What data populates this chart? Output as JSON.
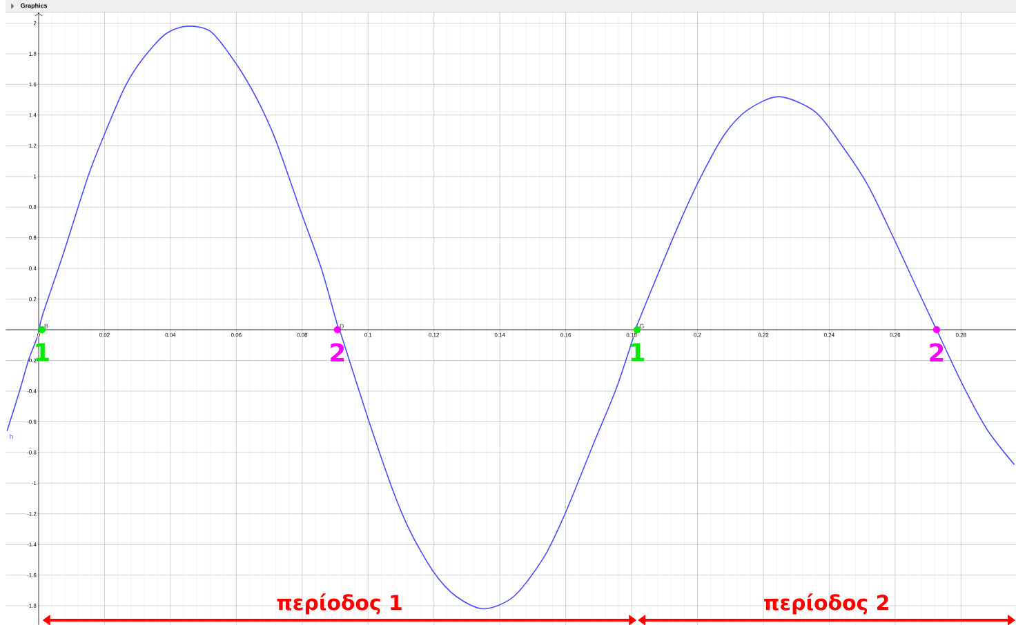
{
  "chart_data": {
    "type": "line",
    "title": "Graphics",
    "xlim": [
      -0.01,
      0.2967
    ],
    "ylim": [
      -1.925,
      2.07
    ],
    "xticks": [
      0,
      0.02,
      0.04,
      0.06,
      0.08,
      0.1,
      0.12,
      0.14,
      0.16,
      0.18,
      0.2,
      0.22,
      0.24,
      0.26,
      0.28
    ],
    "yticks": [
      -1.8,
      -1.6,
      -1.4,
      -1.2,
      -1,
      -0.8,
      -0.6,
      -0.4,
      -0.2,
      0.2,
      0.4,
      0.6,
      0.8,
      1,
      1.2,
      1.4,
      1.6,
      1.8,
      2
    ],
    "grid": true,
    "series": [
      {
        "name": "h",
        "color": "#4a4aff",
        "x": [
          -0.0096,
          -0.0058,
          -0.0031,
          -0.0003,
          0.0011,
          0.0074,
          0.015,
          0.0199,
          0.0261,
          0.0317,
          0.0386,
          0.0452,
          0.0525,
          0.0601,
          0.0664,
          0.0719,
          0.0796,
          0.0858,
          0.0907,
          0.0921,
          0.0997,
          0.1074,
          0.1129,
          0.1199,
          0.1268,
          0.1351,
          0.1442,
          0.1532,
          0.1598,
          0.1685,
          0.1754,
          0.1813,
          0.1824,
          0.1942,
          0.2011,
          0.2081,
          0.215,
          0.2247,
          0.2358,
          0.2442,
          0.2518,
          0.2595,
          0.2664,
          0.2719,
          0.2726,
          0.2803,
          0.2879,
          0.2962
        ],
        "values": [
          -0.66,
          -0.4,
          -0.2,
          -0.04,
          0.09,
          0.49,
          1.0,
          1.27,
          1.58,
          1.77,
          1.93,
          1.98,
          1.94,
          1.73,
          1.5,
          1.24,
          0.77,
          0.4,
          0.03,
          -0.05,
          -0.56,
          -1.04,
          -1.32,
          -1.58,
          -1.74,
          -1.82,
          -1.74,
          -1.49,
          -1.2,
          -0.74,
          -0.38,
          0.0,
          0.07,
          0.68,
          1.0,
          1.27,
          1.43,
          1.52,
          1.42,
          1.19,
          0.94,
          0.6,
          0.28,
          0.03,
          0.0,
          -0.35,
          -0.65,
          -0.88
        ]
      },
      {
        "type": "scatter",
        "x": [
          0.001,
          0.0907,
          0.1817,
          0.2726
        ],
        "values": [
          0,
          0,
          0,
          0
        ],
        "colors": [
          "#00ee00",
          "#ff00ff",
          "#00ee00",
          "#ff00ff"
        ]
      }
    ],
    "annotations": [
      {
        "text": "B",
        "x": 0.001,
        "y": 0
      },
      {
        "text": "D",
        "x": 0.0907,
        "y": 0
      },
      {
        "text": "G",
        "x": 0.1817,
        "y": 0
      },
      "1",
      "2",
      "1",
      "2",
      "περίοδος 1",
      "περίοδος 2"
    ]
  }
}
